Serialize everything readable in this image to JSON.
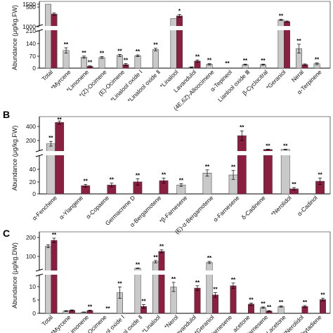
{
  "colors": {
    "gray": "#c9c9c9",
    "red": "#8b1f3f",
    "stroke": "#333333"
  },
  "chart_data": [
    {
      "panel": "",
      "type": "bar",
      "ylabel": "Abundance  (μg/kg.FW)",
      "yticks_upper": [
        "1500",
        "1000",
        "500"
      ],
      "yticks_lower": [
        "210",
        "140",
        "70",
        "0"
      ],
      "upper_range": [
        300,
        1500
      ],
      "lower_range": [
        0,
        210
      ],
      "categories": [
        "Total",
        "*Myrcene",
        "*Limonene",
        "*(Z)-Ocimene",
        "(E)-Ocimene",
        "*Linalool oxide Ⅰ",
        "*Linalool oxide Ⅱ",
        "*Linalool",
        "Lavandulol",
        "(4E,6Z)-Alloocimene",
        "α-Tepineol",
        "Lianlool oxide Ⅲ",
        "β-Cyclocitral",
        "*Geraniol",
        "Neral",
        "α-Terpinene"
      ],
      "series": [
        {
          "color": "gray",
          "values": [
            1700,
            100,
            62,
            60,
            72,
            70,
            105,
            680,
            5,
            22,
            0,
            20,
            20,
            590,
            110,
            25
          ]
        },
        {
          "color": "red",
          "values": [
            1000,
            0,
            10,
            0,
            20,
            0,
            0,
            870,
            40,
            0,
            0,
            0,
            0,
            470,
            20,
            0
          ]
        }
      ],
      "errors": [
        [
          0,
          15,
          6,
          5,
          6,
          5,
          7,
          0,
          2,
          4,
          0,
          3,
          3,
          45,
          25,
          5
        ],
        [
          80,
          0,
          3,
          0,
          6,
          0,
          0,
          100,
          6,
          0,
          0,
          0,
          0,
          35,
          4,
          0
        ]
      ],
      "marks": [
        [
          "",
          "**",
          "**",
          "**",
          "**",
          "**",
          "**",
          "",
          "",
          "**",
          "**",
          "**",
          "**",
          "**",
          "**",
          "**"
        ],
        [
          "",
          "",
          "**",
          "",
          "**",
          "",
          "",
          "*",
          "**",
          "",
          "",
          "",
          "",
          "",
          "",
          ""
        ]
      ]
    },
    {
      "panel": "B",
      "type": "bar",
      "ylabel": "Abundance  (μg/kg.FW)",
      "yticks_upper": [
        "400",
        "200"
      ],
      "yticks_lower": [
        "40",
        "20",
        "0"
      ],
      "upper_range": [
        75,
        520
      ],
      "lower_range": [
        0,
        60
      ],
      "categories": [
        "α-Fenchene",
        "α-Ylangene",
        "α-Copaene",
        "Germacrene D",
        "α-Bergamotene",
        "*β-Farnesene",
        "(E)-α-Bergamotene",
        "α-Farnesene",
        "δ-Cadinene",
        "*Nerolidol",
        "α-Cadinol"
      ],
      "series": [
        {
          "color": "gray",
          "values": [
            185,
            0,
            0,
            0,
            0,
            14,
            33,
            30,
            0,
            90,
            0
          ]
        },
        {
          "color": "red",
          "values": [
            540,
            13,
            14,
            19,
            21,
            0,
            0,
            320,
            90,
            8,
            20
          ]
        }
      ],
      "errors": [
        [
          40,
          0,
          0,
          0,
          0,
          2,
          5,
          7,
          0,
          5,
          0
        ],
        [
          25,
          2,
          3,
          5,
          4,
          0,
          0,
          80,
          5,
          2,
          5
        ]
      ],
      "g_err": [
        8,
        0,
        0,
        0,
        0,
        0,
        0,
        0,
        0,
        0,
        0
      ],
      "marks": [
        [
          "**",
          "",
          "",
          "",
          "",
          "**",
          "**",
          "**",
          "",
          "**",
          ""
        ],
        [
          "**",
          "**",
          "**",
          "**",
          "**",
          "",
          "",
          "**",
          "**",
          "**",
          "**"
        ]
      ]
    },
    {
      "panel": "C",
      "type": "bar",
      "ylabel": "Abundance  (μg/kg.DW)",
      "yticks_upper": [
        "200",
        "100"
      ],
      "yticks_lower": [
        "10",
        "5",
        "0"
      ],
      "upper_range": [
        20,
        230
      ],
      "lower_range": [
        0,
        15
      ],
      "categories": [
        "Total",
        "*Myrcene",
        "*Limonene",
        "*(Z)-Ocimene",
        "Linalool oxide Ⅰ",
        "Linalool oxide Ⅱ",
        "*Linalool",
        "*Nerol",
        "Lavandulol",
        "*Geraniol",
        "Farnesene",
        "acetone",
        "Farnesene",
        "Lacetone",
        "*Nerolidol",
        "Phytadiene"
      ],
      "series": [
        {
          "color": "gray",
          "values": [
            180,
            1,
            0.5,
            0,
            9,
            30,
            75,
            11.5,
            0,
            70,
            0,
            0,
            2.5,
            3,
            0,
            0
          ]
        },
        {
          "color": "red",
          "values": [
            220,
            1.3,
            1.2,
            0,
            0,
            3,
            145,
            0,
            11,
            8,
            12,
            4,
            1,
            0,
            3,
            6
          ]
        }
      ],
      "errors": [
        [
          10,
          0.2,
          0.1,
          0,
          2.5,
          2,
          8,
          2,
          0,
          7,
          0,
          0,
          0.3,
          0.3,
          0,
          0
        ],
        [
          15,
          0.2,
          0.2,
          0,
          0,
          0.8,
          10,
          0,
          1,
          1,
          1.2,
          0.5,
          0.2,
          0,
          0.4,
          0.6
        ]
      ],
      "marks": [
        [
          "",
          "",
          "",
          "",
          "**",
          "**",
          "**",
          "**",
          "",
          "**",
          "",
          "",
          "**",
          "**",
          "",
          ""
        ],
        [
          "**",
          "",
          "**",
          "**",
          "",
          "**",
          "**",
          "",
          "**",
          "**",
          "**",
          "**",
          "**",
          "",
          "**",
          "**"
        ]
      ]
    }
  ]
}
